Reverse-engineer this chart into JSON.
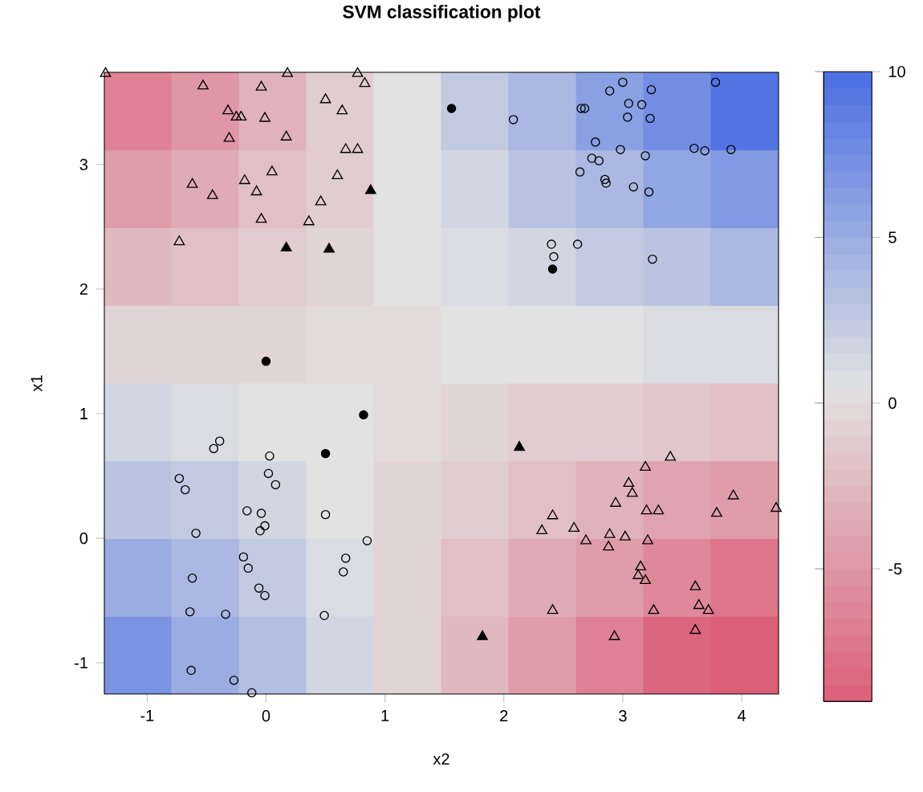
{
  "chart_data": [
    {
      "type": "heatmap",
      "categories": [
        null,
        null,
        null,
        null,
        null,
        null,
        null,
        null,
        null,
        null
      ],
      "y_categories": [
        null,
        null,
        null,
        null,
        null,
        null,
        null,
        null
      ],
      "cells": [
        [
          -6.5,
          -5,
          -3,
          -1,
          0.5,
          2.5,
          4,
          6,
          7.5,
          9.5
        ],
        [
          -4.5,
          -3.5,
          -2,
          -1,
          0.5,
          1.5,
          3,
          4,
          5.5,
          6.5
        ],
        [
          -2.5,
          -2,
          -1,
          -0.5,
          0.5,
          1,
          1.5,
          2.5,
          3,
          4
        ],
        [
          -0.5,
          -0.5,
          -0.5,
          0,
          0,
          0.5,
          0.5,
          0.5,
          1,
          1
        ],
        [
          1.5,
          1,
          0.5,
          0.5,
          0,
          -0.5,
          -1,
          -1,
          -1.5,
          -2
        ],
        [
          3,
          2.5,
          1.5,
          0.5,
          -0.5,
          -1,
          -2,
          -3,
          -4,
          -4.5
        ],
        [
          5,
          4,
          2.5,
          1,
          -0.5,
          -2,
          -3.5,
          -4.5,
          -6,
          -7.5
        ],
        [
          7,
          5,
          3.5,
          1.5,
          -0.5,
          -2.5,
          -4.5,
          -6.5,
          -8.5,
          -9
        ]
      ],
      "clim": [
        -9,
        10
      ],
      "cticks": [
        -5,
        0,
        5,
        10
      ],
      "colors": [
        "#dc5f78",
        "#e2e2e2",
        "#4a6fe3"
      ]
    },
    {
      "type": "scatter",
      "title": "SVM classification plot",
      "xlabel": "x2",
      "ylabel": "x1",
      "xlim": [
        -1.36,
        4.31
      ],
      "ylim": [
        -1.25,
        3.74
      ],
      "xticks": [
        -1,
        0,
        1,
        2,
        3,
        4
      ],
      "yticks": [
        -1,
        0,
        1,
        2,
        3
      ],
      "series": [
        {
          "marker": "triangle",
          "color": "#000000",
          "x": [
            -1.35,
            -0.53,
            -0.04,
            0.18,
            0.77,
            0.83,
            0.5,
            0.64,
            -0.32,
            -0.25,
            -0.21,
            -0.01,
            -0.31,
            0.17,
            0.67,
            0.77,
            0.05,
            0.6,
            -0.62,
            -0.18,
            -0.45,
            -0.08,
            0.46,
            -0.04,
            0.36,
            -0.73,
            3.4,
            3.19,
            3.05,
            3.08,
            2.94,
            3.2,
            3.3,
            3.93,
            3.79,
            4.29,
            2.41,
            2.32,
            2.59,
            2.69,
            2.89,
            3.02,
            3.21,
            2.88,
            3.15,
            3.13,
            3.19,
            3.61,
            3.64,
            3.72,
            2.41,
            3.26,
            3.61,
            2.93
          ],
          "values": [
            3.73,
            3.63,
            3.62,
            3.73,
            3.73,
            3.65,
            3.52,
            3.43,
            3.43,
            3.38,
            3.38,
            3.37,
            3.21,
            3.22,
            3.12,
            3.12,
            2.94,
            2.91,
            2.84,
            2.87,
            2.75,
            2.78,
            2.7,
            2.56,
            2.54,
            2.38,
            0.65,
            0.57,
            0.44,
            0.36,
            0.28,
            0.22,
            0.22,
            0.34,
            0.2,
            0.24,
            0.18,
            0.06,
            0.08,
            -0.02,
            0.03,
            0.01,
            -0.02,
            -0.07,
            -0.23,
            -0.3,
            -0.34,
            -0.39,
            -0.54,
            -0.58,
            -0.58,
            -0.58,
            -0.74,
            -0.79
          ]
        },
        {
          "marker": "triangle",
          "color": "#000000",
          "colors": [
            "#000000",
            "#000000",
            "#000000",
            "#000000",
            "#000000"
          ],
          "x": [
            0.88,
            0.17,
            0.53,
            2.13,
            1.82
          ],
          "values": [
            2.79,
            2.33,
            2.32,
            0.73,
            -0.79
          ]
        },
        {
          "marker": "circle",
          "color": "#000000",
          "x": [
            2.08,
            2.89,
            3.0,
            3.24,
            3.78,
            2.65,
            2.68,
            3.05,
            3.16,
            3.04,
            3.23,
            2.77,
            2.98,
            3.19,
            3.6,
            3.69,
            3.91,
            2.74,
            2.8,
            2.64,
            2.85,
            2.86,
            3.09,
            3.22,
            2.4,
            2.42,
            2.62,
            3.25,
            -0.39,
            -0.44,
            0.03,
            -0.73,
            -0.68,
            0.02,
            0.08,
            -0.16,
            -0.04,
            -0.01,
            -0.05,
            -0.59,
            0.5,
            0.85,
            -0.19,
            -0.15,
            0.67,
            0.65,
            -0.62,
            -0.06,
            -0.01,
            -0.64,
            -0.34,
            0.49,
            -0.63,
            -0.27,
            -0.12
          ],
          "values": [
            3.36,
            3.59,
            3.66,
            3.6,
            3.66,
            3.45,
            3.45,
            3.49,
            3.48,
            3.38,
            3.37,
            3.18,
            3.12,
            3.07,
            3.13,
            3.11,
            3.12,
            3.05,
            3.03,
            2.94,
            2.88,
            2.85,
            2.82,
            2.78,
            2.36,
            2.26,
            2.36,
            2.24,
            0.78,
            0.72,
            0.66,
            0.48,
            0.39,
            0.52,
            0.43,
            0.22,
            0.2,
            0.1,
            0.06,
            0.04,
            0.19,
            -0.02,
            -0.15,
            -0.24,
            -0.16,
            -0.27,
            -0.32,
            -0.4,
            -0.46,
            -0.59,
            -0.61,
            -0.62,
            -1.06,
            -1.14,
            -1.24
          ]
        },
        {
          "marker": "circle",
          "color": "#000000",
          "colors": [
            "#000000",
            "#000000",
            "#000000",
            "#000000",
            "#000000"
          ],
          "x": [
            0.0,
            0.82,
            1.56,
            2.41,
            0.5
          ],
          "values": [
            1.42,
            0.99,
            3.45,
            2.16,
            0.68
          ]
        }
      ]
    }
  ]
}
